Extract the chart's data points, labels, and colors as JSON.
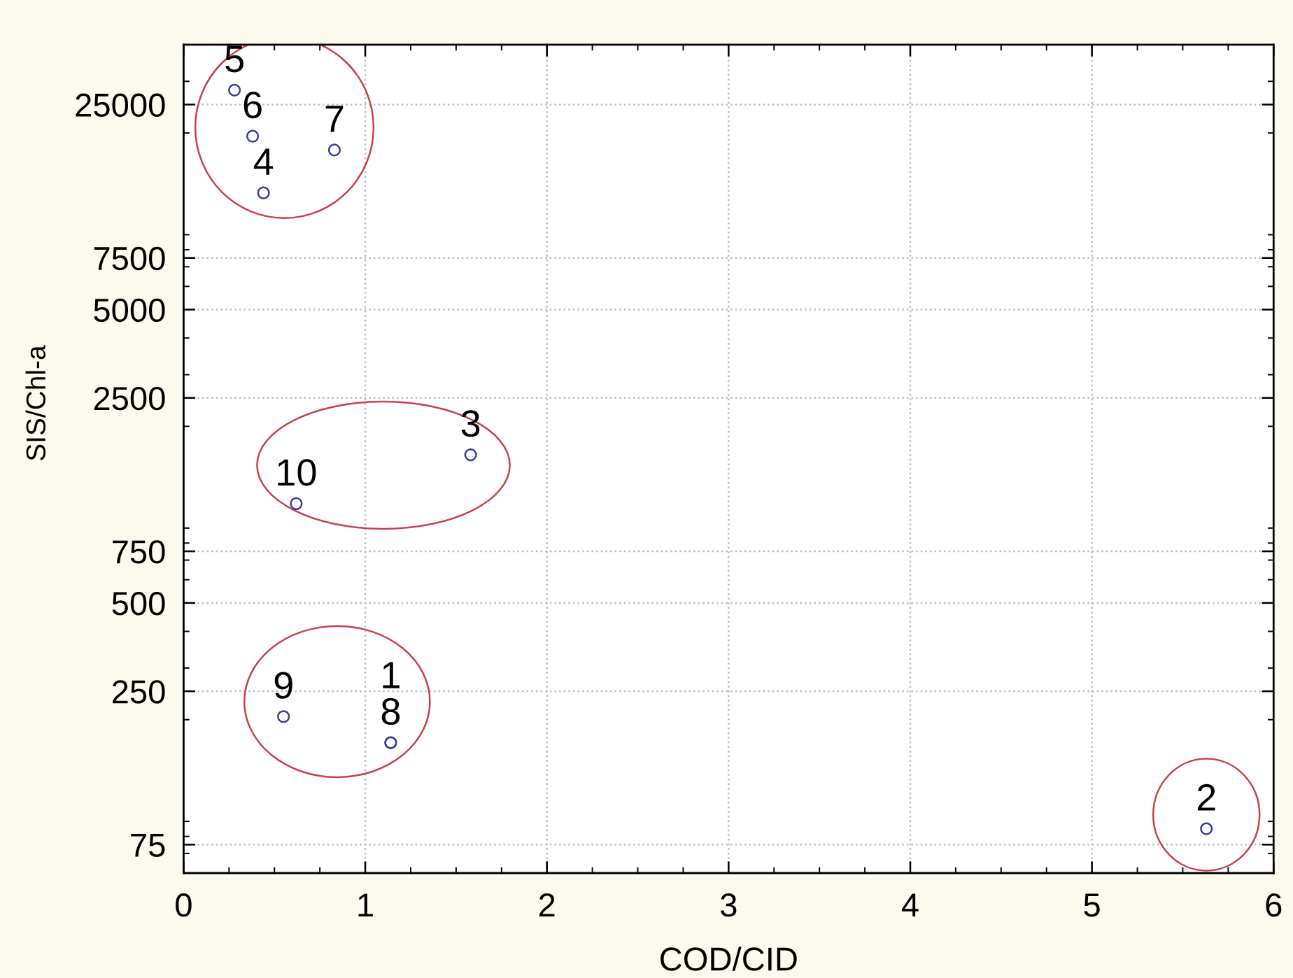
{
  "chart_data": {
    "type": "scatter",
    "xlabel": "COD/CID",
    "ylabel": "SIS/Chl-a",
    "x": [
      1.14,
      5.63,
      1.58,
      0.44,
      0.28,
      0.38,
      0.83,
      1.14,
      0.55,
      0.62
    ],
    "values": [
      167,
      85,
      1600,
      12500,
      28000,
      19500,
      17500,
      167,
      205,
      1090
    ],
    "color": "#3a3a9a",
    "marker": "circle",
    "log": "y",
    "xlim": [
      0,
      6
    ],
    "xticks": [
      0,
      1,
      2,
      3,
      4,
      5,
      6
    ],
    "ylim": [
      60,
      40000
    ],
    "yticks": [
      75,
      250,
      500,
      750,
      2500,
      5000,
      7500,
      25000
    ],
    "grid": true,
    "annotations": [
      {
        "text": "1",
        "x": 1.14,
        "y": 167
      },
      {
        "text": "2",
        "x": 5.63,
        "y": 85
      },
      {
        "text": "3",
        "x": 1.58,
        "y": 1600
      },
      {
        "text": "4",
        "x": 0.44,
        "y": 12500
      },
      {
        "text": "5",
        "x": 0.28,
        "y": 28000
      },
      {
        "text": "6",
        "x": 0.38,
        "y": 19500
      },
      {
        "text": "7",
        "x": 0.83,
        "y": 17500
      },
      {
        "text": "8",
        "x": 1.14,
        "y": 167
      },
      {
        "text": "9",
        "x": 0.55,
        "y": 205
      },
      {
        "text": "10",
        "x": 0.62,
        "y": 1090
      }
    ]
  }
}
